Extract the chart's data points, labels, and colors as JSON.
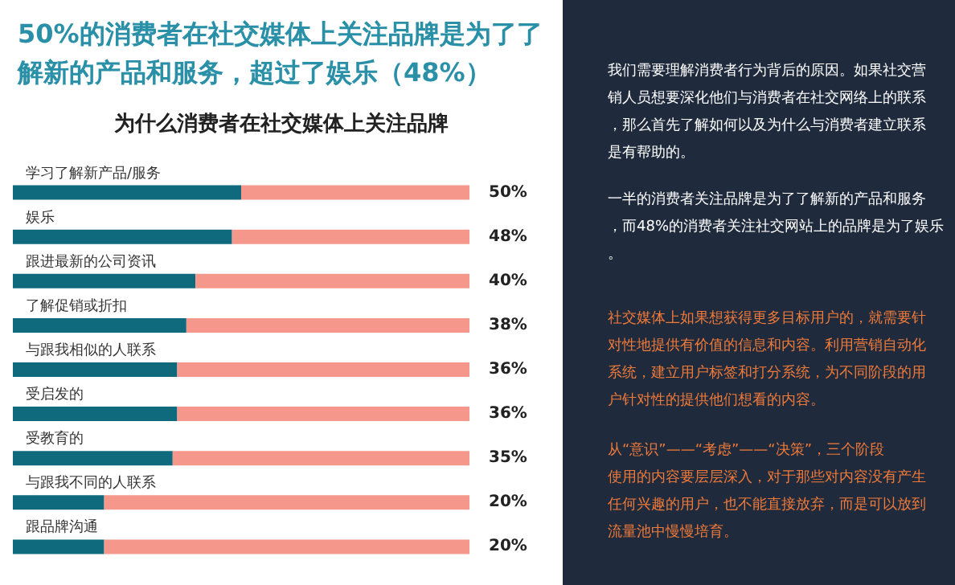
{
  "chart_data": {
    "type": "bar",
    "orientation": "horizontal",
    "stacked": true,
    "title": "50%的消费者在社交媒体上关注品牌是为了了解新的产品和服务，超过了娱乐（48%）",
    "subtitle": "为什么消费者在社交媒体上关注品牌",
    "categories": [
      "学习了解新产品/服务",
      "娱乐",
      "跟进最新的公司资讯",
      "了解促销或折扣",
      "与跟我相似的人联系",
      "受启发的",
      "受教育的",
      "与跟我不同的人联系",
      "跟品牌沟通"
    ],
    "series": [
      {
        "color": "#0f6a7e",
        "values": [
          50,
          48,
          40,
          38,
          36,
          36,
          35,
          20,
          20
        ],
        "value_labels": [
          "50%",
          "48%",
          "40%",
          "38%",
          "36%",
          "36%",
          "35%",
          "20%",
          "20%"
        ]
      },
      {
        "color": "#f5978a",
        "values": [
          50,
          52,
          60,
          62,
          64,
          64,
          65,
          80,
          80
        ]
      }
    ],
    "xlim": [
      0,
      100
    ],
    "tick_labels": "y",
    "annotations": [
      "我们需要理解消费者行为背后的原因。如果社交营销人员想要深化他们与消费者在社交网络上的联系，那么首先了解如何以及为什么与消费者建立联系是有帮助的。",
      "一半的消费者关注品牌是为了了解新的产品和服务，而48%的消费者关注社交网站上的品牌是为了娱乐。",
      "社交媒体上如果想获得更多目标用户的，就需要针对性地提供有价值的信息和内容。利用营销自动化系统，建立用户标签和打分系统，为不同阶段的用户针对性的提供他们想看的内容。",
      "从“意识”——“考虑”——“决策”，三个阶段使用的内容要层层深入，对于那些对内容没有产生任何兴趣的用户，也不能直接放弃，而是可以放到流量池中慢慢培育。"
    ]
  }
}
